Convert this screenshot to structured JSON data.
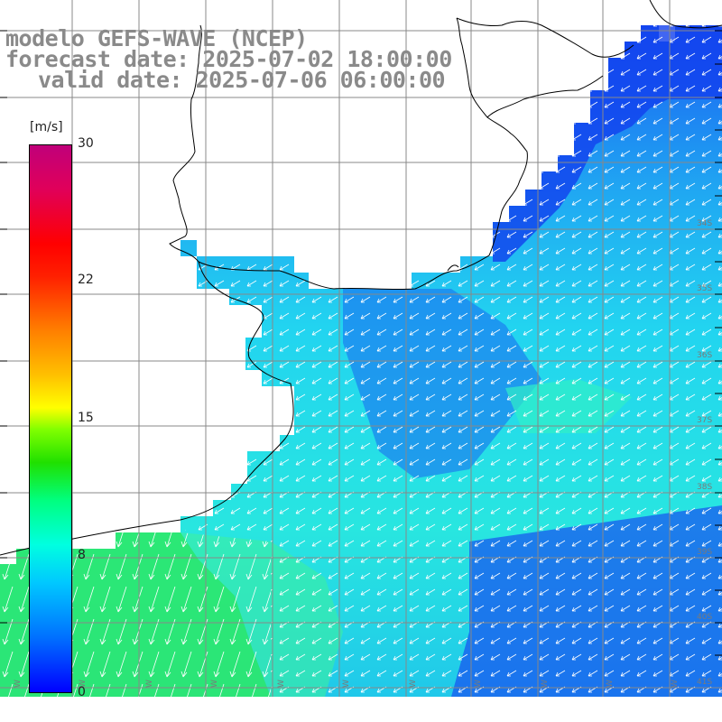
{
  "title": {
    "line1": "modelo GEFS-WAVE (NCEP)",
    "line2": "forecast date: 2025-07-02 18:00:00",
    "line3": "valid date: 2025-07-06 06:00:00"
  },
  "colorbar": {
    "unit": "[m/s]",
    "ticks": [
      "30",
      "22",
      "15",
      "8",
      "0"
    ]
  },
  "lat_labels": [
    "34S",
    "35S",
    "36S",
    "37S",
    "38S",
    "39S",
    "40S",
    "41S"
  ],
  "lon_labels": [
    "W",
    "W",
    "W",
    "W",
    "W",
    "W",
    "W",
    "W",
    "W",
    "W",
    "W"
  ],
  "colors": {
    "land": "#ffffff",
    "coast": "#000000",
    "grid": "#808080",
    "arrow": "#ffffff"
  }
}
